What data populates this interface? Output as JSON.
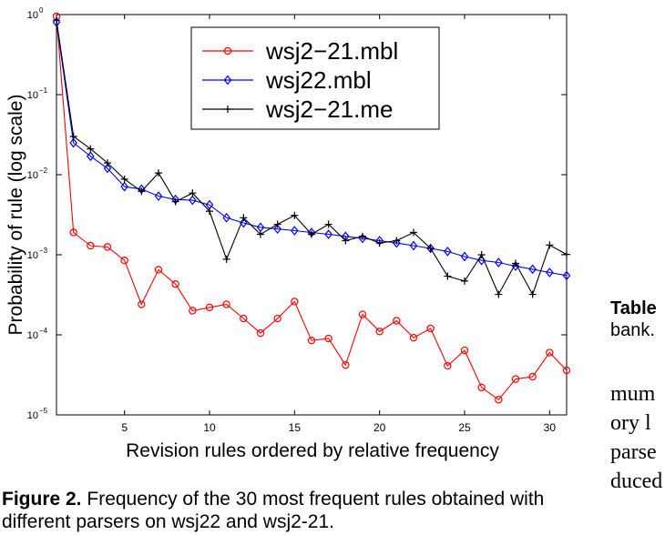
{
  "chart_data": {
    "type": "line",
    "xlabel": "Revision rules ordered by relative frequency",
    "ylabel": "Probability of rule (log scale)",
    "xlim": [
      1,
      31
    ],
    "ylim": [
      1e-05,
      1
    ],
    "y_scale": "log",
    "grid": false,
    "legend_position": "top-center",
    "x_ticks": [
      5,
      10,
      15,
      20,
      25,
      30
    ],
    "y_ticks": [
      {
        "value": 1e-05,
        "base": "10",
        "exp": "−5"
      },
      {
        "value": 0.0001,
        "base": "10",
        "exp": "−4"
      },
      {
        "value": 0.001,
        "base": "10",
        "exp": "−3"
      },
      {
        "value": 0.01,
        "base": "10",
        "exp": "−2"
      },
      {
        "value": 0.1,
        "base": "10",
        "exp": "−1"
      },
      {
        "value": 1,
        "base": "10",
        "exp": "0"
      }
    ],
    "x": [
      1,
      2,
      3,
      4,
      5,
      6,
      7,
      8,
      9,
      10,
      11,
      12,
      13,
      14,
      15,
      16,
      17,
      18,
      19,
      20,
      21,
      22,
      23,
      24,
      25,
      26,
      27,
      28,
      29,
      30,
      31
    ],
    "series": [
      {
        "name": "wsj2−21.mbl",
        "color": "#ff0000",
        "marker": "circle",
        "values": [
          0.95,
          0.0019,
          0.0013,
          0.00125,
          0.00085,
          0.00024,
          0.00065,
          0.00043,
          0.0002,
          0.00022,
          0.00024,
          0.00016,
          0.000105,
          0.00016,
          0.00026,
          8.5e-05,
          9e-05,
          4.2e-05,
          0.00018,
          0.00011,
          0.00015,
          9.2e-05,
          0.00012,
          4.1e-05,
          6.4e-05,
          2.2e-05,
          1.55e-05,
          2.8e-05,
          3e-05,
          6e-05,
          3.6e-05
        ]
      },
      {
        "name": "wsj22.mbl",
        "color": "#0000ff",
        "marker": "diamond",
        "values": [
          0.8,
          0.025,
          0.017,
          0.012,
          0.0071,
          0.0066,
          0.0054,
          0.0049,
          0.0048,
          0.0042,
          0.0029,
          0.0025,
          0.0022,
          0.0021,
          0.002,
          0.0019,
          0.0018,
          0.0017,
          0.0016,
          0.0015,
          0.0014,
          0.0013,
          0.0012,
          0.0011,
          0.00095,
          0.00085,
          0.0008,
          0.00072,
          0.00066,
          0.0006,
          0.00055
        ]
      },
      {
        "name": "wsj2−21.me",
        "color": "#000000",
        "marker": "plus",
        "values": [
          0.85,
          0.03,
          0.021,
          0.014,
          0.0088,
          0.0062,
          0.0105,
          0.0046,
          0.0059,
          0.0035,
          0.00088,
          0.0029,
          0.0018,
          0.0024,
          0.0031,
          0.0018,
          0.0024,
          0.0015,
          0.0017,
          0.0014,
          0.0015,
          0.0019,
          0.0012,
          0.00054,
          0.00047,
          0.001,
          0.00032,
          0.00078,
          0.00032,
          0.00132,
          0.00101
        ]
      }
    ]
  },
  "caption": {
    "label": "Figure 2.",
    "text": "Frequency of the 30 most frequent rules obtained with different parsers on wsj22 and wsj2-21."
  },
  "side_text": {
    "bold": "Table",
    "plain": "bank.",
    "serif_lines": [
      "mum",
      "ory l",
      "parse",
      "duced"
    ]
  }
}
